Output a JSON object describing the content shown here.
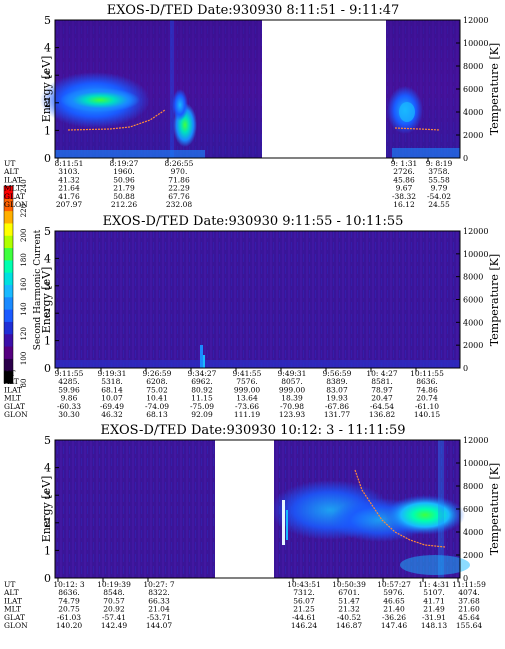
{
  "colorbar": {
    "title": "Second Harmonic Current",
    "ticks": [
      "80",
      "100",
      "120",
      "140",
      "160",
      "180",
      "200",
      "220",
      "240"
    ],
    "colors": [
      "#000000",
      "#2a004a",
      "#55007f",
      "#3b0fa8",
      "#1f2fd6",
      "#1a5aff",
      "#1a8aff",
      "#19b9ff",
      "#00e0e0",
      "#00ffb0",
      "#3fff3f",
      "#b0ff00",
      "#ffff00",
      "#ffb000",
      "#ff6000",
      "#ff0000"
    ]
  },
  "panels": [
    {
      "title": "EXOS-D/TED   Date:930930  8:11:51 - 9:11:47",
      "ylabel_left": "Energy [eV]",
      "ylabel_right": "Temperature [K]",
      "yticks_left": [
        "0",
        "1",
        "2",
        "3",
        "4",
        "5"
      ],
      "yticks_right": [
        "0",
        "2000",
        "4000",
        "6000",
        "8000",
        "10000",
        "12000"
      ],
      "ylim_left": [
        0,
        5
      ],
      "ylim_right": [
        0,
        12000
      ],
      "data_gap": [
        0.51,
        0.82
      ],
      "ephem_labels": [
        "UT",
        "ALT",
        "ILAT",
        "MLT",
        "GLAT",
        "GLON"
      ],
      "ephem_cols": [
        {
          "ut": "8:11:51",
          "alt": "3103.",
          "ilat": "41.32",
          "mlt": "21.64",
          "glat": "41.76",
          "glon": "207.97"
        },
        {
          "ut": "8:19:27",
          "alt": "1960.",
          "ilat": "50.96",
          "mlt": "21.79",
          "glat": "50.88",
          "glon": "212.26"
        },
        {
          "ut": "8:26:55",
          "alt": "970.",
          "ilat": "71.86",
          "mlt": "22.29",
          "glat": "67.76",
          "glon": "232.08"
        },
        {
          "ut": "9: 1:31",
          "alt": "2726.",
          "ilat": "45.86",
          "mlt": "9.67",
          "glat": "-38.32",
          "glon": "16.12"
        },
        {
          "ut": "9: 8:19",
          "alt": "3758.",
          "ilat": "55.58",
          "mlt": "9.79",
          "glat": "-54.02",
          "glon": "24.55"
        }
      ]
    },
    {
      "title": "EXOS-D/TED   Date:930930  9:11:55 - 10:11:55",
      "ylabel_left": "Energy [eV]",
      "ylabel_right": "Temperature [K]",
      "yticks_left": [
        "0",
        "1",
        "2",
        "3",
        "4",
        "5"
      ],
      "yticks_right": [
        "0",
        "2000",
        "4000",
        "6000",
        "8000",
        "10000",
        "12000"
      ],
      "ylim_left": [
        0,
        5
      ],
      "ylim_right": [
        0,
        12000
      ],
      "ephem_labels": [
        "UT",
        "ALT",
        "ILAT",
        "MLT",
        "GLAT",
        "GLON"
      ],
      "ephem_cols": [
        {
          "ut": "9:11:55",
          "alt": "4285.",
          "ilat": "59.96",
          "mlt": "9.86",
          "glat": "-60.33",
          "glon": "30.30"
        },
        {
          "ut": "9:19:31",
          "alt": "5318.",
          "ilat": "68.14",
          "mlt": "10.07",
          "glat": "-69.49",
          "glon": "46.32"
        },
        {
          "ut": "9:26:59",
          "alt": "6208.",
          "ilat": "75.02",
          "mlt": "10.41",
          "glat": "-74.09",
          "glon": "68.13"
        },
        {
          "ut": "9:34:27",
          "alt": "6962.",
          "ilat": "80.92",
          "mlt": "11.15",
          "glat": "-75.09",
          "glon": "92.09"
        },
        {
          "ut": "9:41:55",
          "alt": "7576.",
          "ilat": "999.00",
          "mlt": "13.64",
          "glat": "-73.66",
          "glon": "111.19"
        },
        {
          "ut": "9:49:31",
          "alt": "8057.",
          "ilat": "999.00",
          "mlt": "18.39",
          "glat": "-70.98",
          "glon": "123.93"
        },
        {
          "ut": "9:56:59",
          "alt": "8389.",
          "ilat": "83.07",
          "mlt": "19.93",
          "glat": "-67.86",
          "glon": "131.77"
        },
        {
          "ut": "10: 4:27",
          "alt": "8581.",
          "ilat": "78.97",
          "mlt": "20.47",
          "glat": "-64.54",
          "glon": "136.82"
        },
        {
          "ut": "10:11:55",
          "alt": "8636.",
          "ilat": "74.86",
          "mlt": "20.74",
          "glat": "-61.10",
          "glon": "140.15"
        }
      ]
    },
    {
      "title": "EXOS-D/TED   Date:930930  10:12: 3 - 11:11:59",
      "ylabel_left": "Energy [eV]",
      "ylabel_right": "Temperature [K]",
      "yticks_left": [
        "0",
        "1",
        "2",
        "3",
        "4",
        "5"
      ],
      "yticks_right": [
        "0",
        "2000",
        "4000",
        "6000",
        "8000",
        "10000",
        "12000"
      ],
      "ylim_left": [
        0,
        5
      ],
      "ylim_right": [
        0,
        12000
      ],
      "data_gap": [
        0.34,
        0.48
      ],
      "ephem_labels": [
        "UT",
        "ALT",
        "ILAT",
        "MLT",
        "GLAT",
        "GLON"
      ],
      "ephem_cols": [
        {
          "ut": "10:12: 3",
          "alt": "8636.",
          "ilat": "74.79",
          "mlt": "20.75",
          "glat": "-61.03",
          "glon": "140.20"
        },
        {
          "ut": "10:19:39",
          "alt": "8548.",
          "ilat": "70.57",
          "mlt": "20.92",
          "glat": "-57.41",
          "glon": "142.49"
        },
        {
          "ut": "10:27: 7",
          "alt": "8322.",
          "ilat": "66.33",
          "mlt": "21.04",
          "glat": "-53.71",
          "glon": "144.07"
        },
        {
          "ut": "10:43:51",
          "alt": "7312.",
          "ilat": "56.07",
          "mlt": "21.25",
          "glat": "-44.61",
          "glon": "146.24"
        },
        {
          "ut": "10:50:39",
          "alt": "6701.",
          "ilat": "51.47",
          "mlt": "21.32",
          "glat": "-40.52",
          "glon": "146.87"
        },
        {
          "ut": "10:57:27",
          "alt": "5976.",
          "ilat": "46.65",
          "mlt": "21.40",
          "glat": "-36.26",
          "glon": "147.46"
        },
        {
          "ut": "11: 4:31",
          "alt": "5107.",
          "ilat": "41.71",
          "mlt": "21.49",
          "glat": "-31.91",
          "glon": "148.13"
        },
        {
          "ut": "11:11:59",
          "alt": "4074.",
          "ilat": "37.68",
          "mlt": "21.60",
          "glat": "45.64",
          "glon": "155.64"
        }
      ]
    }
  ]
}
